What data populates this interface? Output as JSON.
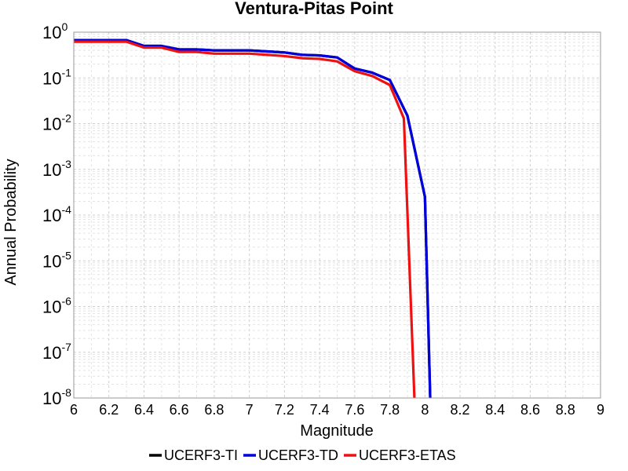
{
  "chart_data": {
    "type": "line",
    "title": "Ventura-Pitas Point",
    "xlabel": "Magnitude",
    "ylabel": "Annual Probability",
    "xlim": [
      6,
      9
    ],
    "ylim": [
      1e-08,
      1
    ],
    "yscale": "log",
    "grid": true,
    "legend_position": "bottom",
    "x_ticks": [
      "6",
      "6.2",
      "6.4",
      "6.6",
      "6.8",
      "7",
      "7.2",
      "7.4",
      "7.6",
      "7.8",
      "8",
      "8.2",
      "8.4",
      "8.6",
      "8.8",
      "9"
    ],
    "y_tick_exponents": [
      "0",
      "-1",
      "-2",
      "-3",
      "-4",
      "-5",
      "-6",
      "-7",
      "-8"
    ],
    "y_tick_base": "10",
    "series": [
      {
        "name": "UCERF3-TI",
        "color": "#000000",
        "x": [
          6.0,
          6.1,
          6.2,
          6.3,
          6.4,
          6.5,
          6.6,
          6.7,
          6.8,
          6.9,
          7.0,
          7.1,
          7.2,
          7.3,
          7.4,
          7.5,
          7.6,
          7.7,
          7.8,
          7.9,
          8.0,
          8.03
        ],
        "y": [
          0.67,
          0.67,
          0.67,
          0.67,
          0.5,
          0.5,
          0.42,
          0.42,
          0.4,
          0.4,
          0.4,
          0.38,
          0.36,
          0.32,
          0.31,
          0.28,
          0.16,
          0.13,
          0.09,
          0.015,
          0.00025,
          1e-08
        ]
      },
      {
        "name": "UCERF3-TD",
        "color": "#0000dd",
        "x": [
          6.0,
          6.1,
          6.2,
          6.3,
          6.4,
          6.5,
          6.6,
          6.7,
          6.8,
          6.9,
          7.0,
          7.1,
          7.2,
          7.3,
          7.4,
          7.5,
          7.6,
          7.7,
          7.8,
          7.9,
          8.0,
          8.03
        ],
        "y": [
          0.67,
          0.67,
          0.67,
          0.67,
          0.5,
          0.5,
          0.42,
          0.42,
          0.4,
          0.4,
          0.4,
          0.38,
          0.36,
          0.32,
          0.31,
          0.28,
          0.16,
          0.13,
          0.09,
          0.015,
          0.00025,
          1e-08
        ]
      },
      {
        "name": "UCERF3-ETAS",
        "color": "#ee1111",
        "x": [
          6.0,
          6.1,
          6.2,
          6.3,
          6.4,
          6.5,
          6.6,
          6.7,
          6.8,
          6.9,
          7.0,
          7.1,
          7.2,
          7.3,
          7.4,
          7.5,
          7.6,
          7.7,
          7.8,
          7.88,
          7.94
        ],
        "y": [
          0.62,
          0.62,
          0.62,
          0.62,
          0.46,
          0.46,
          0.37,
          0.37,
          0.34,
          0.34,
          0.34,
          0.32,
          0.3,
          0.27,
          0.26,
          0.23,
          0.14,
          0.11,
          0.07,
          0.013,
          1e-08
        ]
      }
    ]
  }
}
